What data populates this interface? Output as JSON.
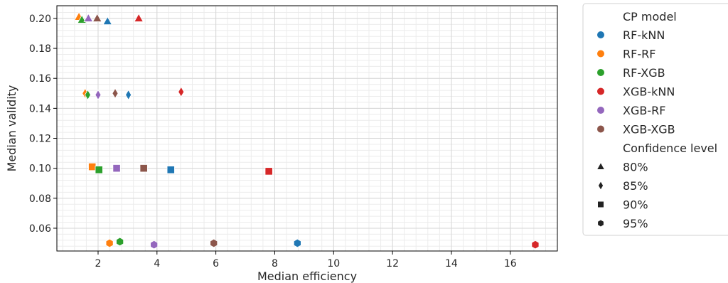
{
  "chart_data": {
    "type": "scatter",
    "xlabel": "Median efficiency",
    "ylabel": "Median validity",
    "xlim": [
      0.6,
      17.6
    ],
    "ylim": [
      0.0448,
      0.2085
    ],
    "xticks": [
      2,
      4,
      6,
      8,
      10,
      12,
      14,
      16
    ],
    "yticks": [
      0.06,
      0.08,
      0.1,
      0.12,
      0.14,
      0.16,
      0.18,
      0.2
    ],
    "xtick_labels": [
      "2",
      "4",
      "6",
      "8",
      "10",
      "12",
      "14",
      "16"
    ],
    "ytick_labels": [
      "0.06",
      "0.08",
      "0.10",
      "0.12",
      "0.14",
      "0.16",
      "0.18",
      "0.20"
    ],
    "minor_grid": true,
    "grid": true,
    "legend_position": "outside-right",
    "hue_legend": {
      "title": "CP model",
      "entries": [
        {
          "name": "RF-kNN",
          "color": "#1f77b4"
        },
        {
          "name": "RF-RF",
          "color": "#ff7f0e"
        },
        {
          "name": "RF-XGB",
          "color": "#2ca02c"
        },
        {
          "name": "XGB-kNN",
          "color": "#d62728"
        },
        {
          "name": "XGB-RF",
          "color": "#9467bd"
        },
        {
          "name": "XGB-XGB",
          "color": "#8c564b"
        }
      ]
    },
    "style_legend": {
      "title": "Confidence level",
      "entries": [
        {
          "name": "80%",
          "marker": "triangle"
        },
        {
          "name": "85%",
          "marker": "diamond"
        },
        {
          "name": "90%",
          "marker": "square"
        },
        {
          "name": "95%",
          "marker": "hexagon"
        }
      ]
    },
    "points": [
      {
        "model": "RF-kNN",
        "level": "80%",
        "x": 2.32,
        "y": 0.198
      },
      {
        "model": "RF-RF",
        "level": "80%",
        "x": 1.35,
        "y": 0.201
      },
      {
        "model": "RF-XGB",
        "level": "80%",
        "x": 1.45,
        "y": 0.199
      },
      {
        "model": "XGB-kNN",
        "level": "80%",
        "x": 3.38,
        "y": 0.2
      },
      {
        "model": "XGB-RF",
        "level": "80%",
        "x": 1.67,
        "y": 0.2
      },
      {
        "model": "XGB-XGB",
        "level": "80%",
        "x": 1.97,
        "y": 0.2
      },
      {
        "model": "RF-kNN",
        "level": "85%",
        "x": 3.03,
        "y": 0.149
      },
      {
        "model": "RF-RF",
        "level": "85%",
        "x": 1.56,
        "y": 0.15
      },
      {
        "model": "RF-XGB",
        "level": "85%",
        "x": 1.65,
        "y": 0.149
      },
      {
        "model": "XGB-kNN",
        "level": "85%",
        "x": 4.82,
        "y": 0.151
      },
      {
        "model": "XGB-RF",
        "level": "85%",
        "x": 2.0,
        "y": 0.149
      },
      {
        "model": "XGB-XGB",
        "level": "85%",
        "x": 2.58,
        "y": 0.15
      },
      {
        "model": "RF-kNN",
        "level": "90%",
        "x": 4.47,
        "y": 0.099
      },
      {
        "model": "RF-RF",
        "level": "90%",
        "x": 1.8,
        "y": 0.101
      },
      {
        "model": "RF-XGB",
        "level": "90%",
        "x": 2.03,
        "y": 0.099
      },
      {
        "model": "XGB-kNN",
        "level": "90%",
        "x": 7.8,
        "y": 0.098
      },
      {
        "model": "XGB-RF",
        "level": "90%",
        "x": 2.63,
        "y": 0.1
      },
      {
        "model": "XGB-XGB",
        "level": "90%",
        "x": 3.55,
        "y": 0.1
      },
      {
        "model": "RF-kNN",
        "level": "95%",
        "x": 8.77,
        "y": 0.05
      },
      {
        "model": "RF-RF",
        "level": "95%",
        "x": 2.39,
        "y": 0.05
      },
      {
        "model": "RF-XGB",
        "level": "95%",
        "x": 2.74,
        "y": 0.051
      },
      {
        "model": "XGB-kNN",
        "level": "95%",
        "x": 16.85,
        "y": 0.049
      },
      {
        "model": "XGB-RF",
        "level": "95%",
        "x": 3.9,
        "y": 0.049
      },
      {
        "model": "XGB-XGB",
        "level": "95%",
        "x": 5.93,
        "y": 0.05
      }
    ]
  }
}
